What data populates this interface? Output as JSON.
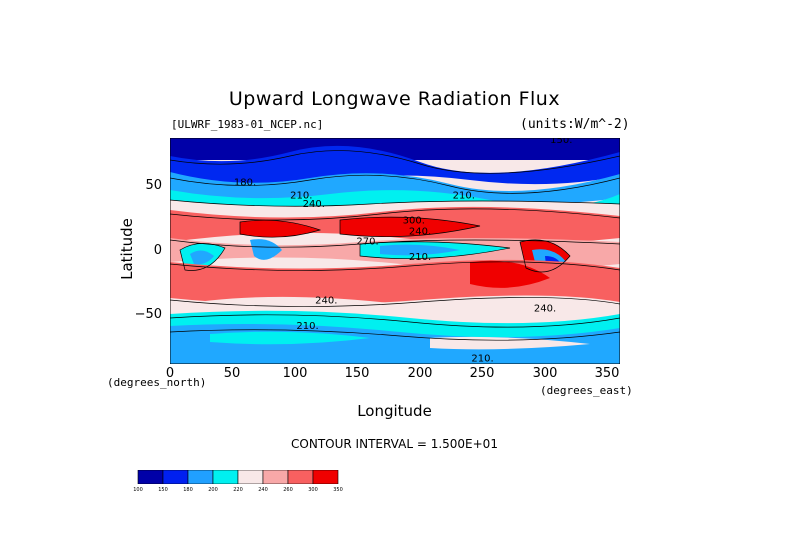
{
  "title": "Upward Longwave Radiation Flux",
  "file_label": "[ULWRF_1983-01_NCEP.nc]",
  "units_label": "(units:W/m^-2)",
  "y_axis": {
    "title": "Latitude",
    "ticks": [
      "50",
      "0",
      "−50"
    ],
    "tick_values": [
      50,
      0,
      -50
    ],
    "range": [
      -90,
      90
    ]
  },
  "x_axis": {
    "title": "Longitude",
    "ticks": [
      "0",
      "50",
      "100",
      "150",
      "200",
      "250",
      "300",
      "350"
    ],
    "tick_values": [
      0,
      50,
      100,
      150,
      200,
      250,
      300,
      350
    ],
    "range": [
      0,
      360
    ]
  },
  "x_left_units": "(degrees_north)",
  "x_right_units": "(degrees_east)",
  "contour_interval": "CONTOUR INTERVAL = 1.500E+01",
  "contour_labels": [
    {
      "text": "150",
      "lon": 313,
      "lat": 86
    },
    {
      "text": "180",
      "lon": 60,
      "lat": 52
    },
    {
      "text": "210",
      "lon": 105,
      "lat": 42
    },
    {
      "text": "240",
      "lon": 115,
      "lat": 35
    },
    {
      "text": "210",
      "lon": 235,
      "lat": 42
    },
    {
      "text": "300",
      "lon": 195,
      "lat": 22
    },
    {
      "text": "270",
      "lon": 158,
      "lat": 5
    },
    {
      "text": "240",
      "lon": 200,
      "lat": 13
    },
    {
      "text": "210",
      "lon": 200,
      "lat": -7
    },
    {
      "text": "240",
      "lon": 125,
      "lat": -42
    },
    {
      "text": "210",
      "lon": 110,
      "lat": -62
    },
    {
      "text": "240",
      "lon": 300,
      "lat": -48
    },
    {
      "text": "210",
      "lon": 250,
      "lat": -88
    }
  ],
  "colorbar": {
    "labels": [
      "100",
      "150",
      "180",
      "200",
      "220",
      "240",
      "260",
      "300",
      "350"
    ],
    "colors": [
      "#0000a8",
      "#0020f0",
      "#20a0ff",
      "#00f0f0",
      "#f8e8e8",
      "#f8a8a8",
      "#f86060",
      "#f00000"
    ]
  },
  "colors": {
    "deep_blue": "#0000a8",
    "blue": "#0028f0",
    "sky": "#20a8ff",
    "cyan": "#00f0f0",
    "pale": "#f8e8e8",
    "pink": "#f8a8a8",
    "salmon": "#f86060",
    "red": "#f00000"
  }
}
